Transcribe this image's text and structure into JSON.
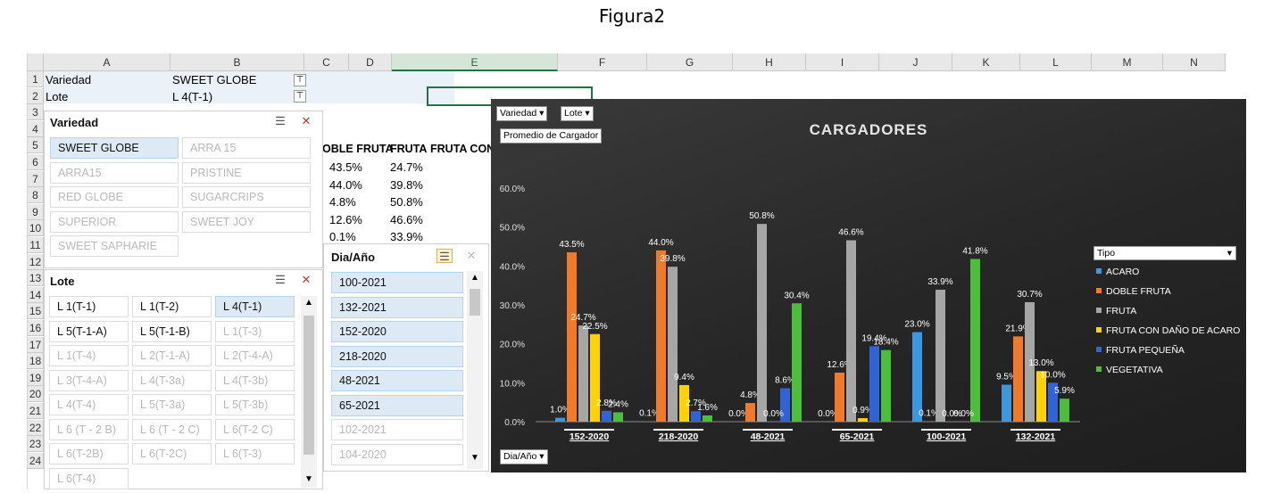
{
  "caption": "Figura2",
  "columns": [
    "A",
    "B",
    "C",
    "D",
    "E",
    "F",
    "G",
    "H",
    "I",
    "J",
    "K",
    "L",
    "M",
    "N"
  ],
  "rows": [
    "1",
    "2",
    "3",
    "4",
    "5",
    "6",
    "7",
    "8",
    "9",
    "10",
    "11",
    "12",
    "13",
    "14",
    "15",
    "16",
    "17",
    "18",
    "19",
    "20",
    "21",
    "22",
    "23",
    "24"
  ],
  "cells": {
    "a1": "Variedad",
    "b1": "SWEET GLOBE",
    "a2": "Lote",
    "b2": "L 4(T-1)",
    "headers": [
      "OBLE FRUTA",
      "FRUTA",
      "FRUTA CON"
    ],
    "c_vals": [
      "43.5%",
      "44.0%",
      "4.8%",
      "12.6%",
      "0.1%"
    ],
    "d_vals": [
      "24.7%",
      "39.8%",
      "50.8%",
      "46.6%",
      "33.9%"
    ]
  },
  "slicer_variedad": {
    "title": "Variedad",
    "items": [
      {
        "label": "SWEET GLOBE",
        "selected": true
      },
      {
        "label": "ARRA 15",
        "selected": false
      },
      {
        "label": "ARRA15",
        "selected": false
      },
      {
        "label": "PRISTINE",
        "selected": false
      },
      {
        "label": "RED GLOBE",
        "selected": false
      },
      {
        "label": "SUGARCRIPS",
        "selected": false
      },
      {
        "label": "SUPERIOR",
        "selected": false
      },
      {
        "label": "SWEET JOY",
        "selected": false
      },
      {
        "label": "SWEET SAPHARIE",
        "selected": false
      }
    ]
  },
  "slicer_lote": {
    "title": "Lote",
    "items": [
      {
        "label": "L 1(T-1)",
        "state": "avail"
      },
      {
        "label": "L 1(T-2)",
        "state": "avail"
      },
      {
        "label": "L 4(T-1)",
        "state": "selected"
      },
      {
        "label": "L 5(T-1-A)",
        "state": "avail"
      },
      {
        "label": "L 5(T-1-B)",
        "state": "avail"
      },
      {
        "label": "L 1(T-3)",
        "state": "dim"
      },
      {
        "label": "L 1(T-4)",
        "state": "dim"
      },
      {
        "label": "L 2(T-1-A)",
        "state": "dim"
      },
      {
        "label": "L 2(T-4-A)",
        "state": "dim"
      },
      {
        "label": "L 3(T-4-A)",
        "state": "dim"
      },
      {
        "label": "L 4(T-3a)",
        "state": "dim"
      },
      {
        "label": "L 4(T-3b)",
        "state": "dim"
      },
      {
        "label": "L 4(T-4)",
        "state": "dim"
      },
      {
        "label": "L 5(T-3a)",
        "state": "dim"
      },
      {
        "label": "L 5(T-3b)",
        "state": "dim"
      },
      {
        "label": "L 6 (T - 2 B)",
        "state": "dim"
      },
      {
        "label": "L 6 (T - 2 C)",
        "state": "dim"
      },
      {
        "label": "L 6(T-2 C)",
        "state": "dim"
      },
      {
        "label": "L 6(T-2B)",
        "state": "dim"
      },
      {
        "label": "L 6(T-2C)",
        "state": "dim"
      },
      {
        "label": "L 6(T-3)",
        "state": "dim"
      },
      {
        "label": "L 6(T-4)",
        "state": "dim"
      }
    ]
  },
  "slicer_dia": {
    "title": "Dia/Año",
    "items": [
      {
        "label": "100-2021",
        "selected": true
      },
      {
        "label": "132-2021",
        "selected": true
      },
      {
        "label": "152-2020",
        "selected": true
      },
      {
        "label": "218-2020",
        "selected": true
      },
      {
        "label": "48-2021",
        "selected": true
      },
      {
        "label": "65-2021",
        "selected": true
      },
      {
        "label": "102-2021",
        "selected": false
      },
      {
        "label": "104-2020",
        "selected": false
      }
    ]
  },
  "pivot_buttons": {
    "variedad": "Variedad",
    "lote": "Lote",
    "promedio": "Promedio de Cargador",
    "dia": "Dia/Año"
  },
  "legend_title": "Tipo",
  "colors": {
    "accent": "#217346",
    "chart_bg": "#2b2b2b"
  },
  "chart_data": {
    "type": "bar",
    "title": "CARGADORES",
    "categories": [
      "152-2020",
      "218-2020",
      "48-2021",
      "65-2021",
      "100-2021",
      "132-2021"
    ],
    "ylim": [
      0,
      60
    ],
    "yticks": [
      "0.0%",
      "10.0%",
      "20.0%",
      "30.0%",
      "40.0%",
      "50.0%",
      "60.0%"
    ],
    "legend_position": "right",
    "series": [
      {
        "name": "ACARO",
        "color": "#3a97e0",
        "values": [
          1.0,
          0.1,
          0.0,
          0.0,
          23.0,
          9.5
        ]
      },
      {
        "name": "DOBLE FRUTA",
        "color": "#f07a2a",
        "values": [
          43.5,
          44.0,
          4.8,
          12.6,
          0.1,
          21.9
        ]
      },
      {
        "name": "FRUTA",
        "color": "#a6a6a6",
        "values": [
          24.7,
          39.8,
          50.8,
          46.6,
          33.9,
          30.7
        ]
      },
      {
        "name": "FRUTA CON DAÑO DE ACARO",
        "color": "#ffd200",
        "values": [
          22.5,
          9.4,
          0.0,
          0.9,
          0.0,
          13.0
        ]
      },
      {
        "name": "FRUTA PEQUEÑA",
        "color": "#2f63d6",
        "values": [
          2.8,
          2.7,
          8.6,
          19.4,
          0.0,
          10.0
        ]
      },
      {
        "name": "VEGETATIVA",
        "color": "#4cbf3a",
        "values": [
          2.4,
          1.6,
          30.4,
          18.4,
          41.8,
          5.9
        ]
      }
    ],
    "labels": [
      [
        "1.0%",
        "0.1%",
        "0.0%",
        "0.0%",
        "23.0%",
        "9.5%"
      ],
      [
        "43.5%",
        "44.0%",
        "4.8%",
        "12.6%",
        "0.1%",
        "21.9%"
      ],
      [
        "24.7%",
        "39.8%",
        "50.8%",
        "46.6%",
        "33.9%",
        "30.7%"
      ],
      [
        "22.5%",
        "9.4%",
        "",
        "0.9%",
        "0.0%",
        "13.0%"
      ],
      [
        "2.8%",
        "2.7%",
        "8.6%",
        "19.4%",
        "",
        "10.0%"
      ],
      [
        "2.4%",
        "1.6%",
        "30.4%",
        "18.4%",
        "41.8%",
        "5.9%"
      ]
    ],
    "extra_labels": [
      {
        "category": 2,
        "series": 3,
        "text": "0.0%"
      },
      {
        "category": 4,
        "series": 4,
        "text": "0.0%"
      }
    ]
  }
}
